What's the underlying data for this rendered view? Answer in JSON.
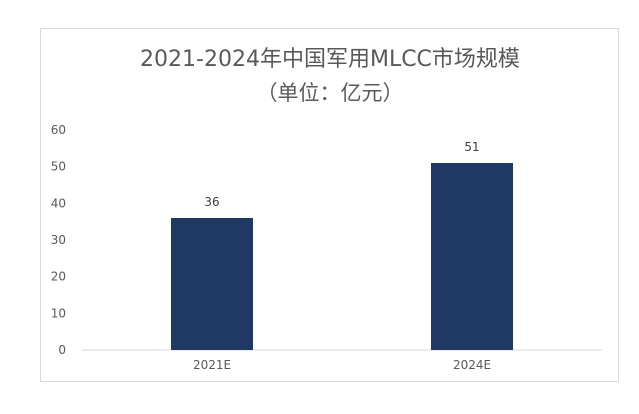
{
  "chart_data": {
    "type": "bar",
    "title": "2021-2024年中国军用MLCC市场规模",
    "subtitle": "（单位：亿元）",
    "categories": [
      "2021E",
      "2024E"
    ],
    "values": [
      36,
      51
    ],
    "data_labels": [
      "36",
      "51"
    ],
    "xlabel": "",
    "ylabel": "",
    "ylim": [
      0,
      60
    ],
    "yticks": [
      0,
      10,
      20,
      30,
      40,
      50,
      60
    ],
    "ytick_labels": [
      "0",
      "10",
      "20",
      "30",
      "40",
      "50",
      "60"
    ],
    "grid": false,
    "legend": "none",
    "bar_color": "#1f3864"
  }
}
